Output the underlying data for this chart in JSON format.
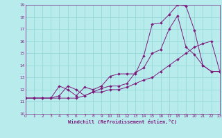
{
  "background_color": "#b8ecec",
  "grid_color": "#8fd4d4",
  "line_color": "#7b1a7b",
  "xlabel": "Windchill (Refroidissement éolien,°C)",
  "xlim": [
    0,
    23
  ],
  "ylim": [
    10,
    19
  ],
  "xticks": [
    0,
    1,
    2,
    3,
    4,
    5,
    6,
    7,
    8,
    9,
    10,
    11,
    12,
    13,
    14,
    15,
    16,
    17,
    18,
    19,
    20,
    21,
    22,
    23
  ],
  "yticks": [
    10,
    11,
    12,
    13,
    14,
    15,
    16,
    17,
    18,
    19
  ],
  "curve1_x": [
    0,
    1,
    2,
    3,
    4,
    5,
    6,
    7,
    8,
    9,
    10,
    11,
    12,
    13,
    14,
    15,
    16,
    17,
    18,
    19,
    20,
    21,
    22,
    23
  ],
  "curve1_y": [
    11.3,
    11.3,
    11.3,
    11.3,
    11.5,
    12.3,
    12.0,
    11.5,
    11.8,
    12.1,
    12.3,
    12.3,
    12.5,
    13.4,
    13.8,
    15.0,
    15.3,
    17.0,
    18.1,
    15.5,
    14.9,
    14.0,
    13.5,
    13.5
  ],
  "curve2_x": [
    0,
    1,
    2,
    3,
    4,
    5,
    6,
    7,
    8,
    9,
    10,
    11,
    12,
    13,
    14,
    15,
    16,
    17,
    18,
    19,
    20,
    21,
    22,
    23
  ],
  "curve2_y": [
    11.3,
    11.3,
    11.3,
    11.3,
    12.3,
    12.0,
    11.5,
    12.2,
    12.0,
    12.3,
    13.1,
    13.3,
    13.3,
    13.3,
    14.8,
    17.4,
    17.5,
    18.2,
    19.0,
    18.9,
    16.9,
    14.0,
    13.5,
    13.5
  ],
  "curve3_x": [
    0,
    1,
    2,
    3,
    4,
    5,
    6,
    7,
    8,
    9,
    10,
    11,
    12,
    13,
    14,
    15,
    16,
    17,
    18,
    19,
    20,
    21,
    22,
    23
  ],
  "curve3_y": [
    11.3,
    11.3,
    11.3,
    11.3,
    11.3,
    11.3,
    11.3,
    11.5,
    11.8,
    11.8,
    12.0,
    12.0,
    12.2,
    12.5,
    12.8,
    13.0,
    13.5,
    14.0,
    14.5,
    15.0,
    15.5,
    15.8,
    16.0,
    13.5
  ]
}
